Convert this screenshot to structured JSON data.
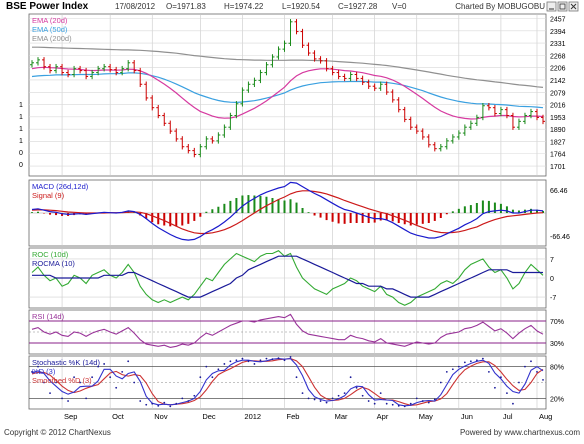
{
  "header": {
    "title": "BSE Power Index",
    "date": "17/08/2012",
    "open": "O=1971.83",
    "high": "H=1974.22",
    "low": "L=1920.54",
    "close": "C=1927.28",
    "volume": "V=0",
    "charted_by": "Charted By MOBUGOBU"
  },
  "footer": {
    "copyright": "Copyright © 2012 ChartNexus",
    "powered_by": "Powered by www.chartnexus.com"
  },
  "colors": {
    "up": "#1a8a1a",
    "down": "#cc0000",
    "ema20": "#d63aa0",
    "ema50": "#3aa0e0",
    "ema200": "#909090",
    "macd": "#1a1acc",
    "signal": "#cc1a1a",
    "roc": "#33aa33",
    "rocma": "#1a1a99",
    "rsi": "#993399",
    "stoch_k": "#1a1a99",
    "stoch_d": "#3333cc",
    "stoch_smooth": "#cc3333",
    "band": "#882288"
  },
  "chart_data": [
    {
      "type": "candlestick",
      "name": "price",
      "legend": [
        "EMA (20d)",
        "EMA (50d)",
        "EMA (200d)"
      ],
      "y_ticks": [
        "2457",
        "2394",
        "2331",
        "2268",
        "2206",
        "2142",
        "2079",
        "2016",
        "1953",
        "1890",
        "1827",
        "1764",
        "1701"
      ],
      "left_ticks": [
        "1",
        "1",
        "1",
        "1",
        "0",
        "0"
      ],
      "ylim": [
        1650,
        2480
      ],
      "x_labels": [
        "Sep",
        "Oct",
        "Nov",
        "Dec",
        "2012",
        "Feb",
        "Mar",
        "Apr",
        "May",
        "Jun",
        "Jul",
        "Aug"
      ],
      "close": [
        2230,
        2245,
        2210,
        2190,
        2210,
        2180,
        2170,
        2200,
        2190,
        2160,
        2180,
        2200,
        2210,
        2195,
        2180,
        2200,
        2230,
        2190,
        2120,
        2050,
        2000,
        1960,
        1920,
        1880,
        1840,
        1800,
        1780,
        1760,
        1800,
        1840,
        1830,
        1860,
        1900,
        1960,
        2020,
        2090,
        2120,
        2140,
        2180,
        2220,
        2260,
        2300,
        2330,
        2440,
        2390,
        2320,
        2280,
        2250,
        2240,
        2200,
        2180,
        2160,
        2150,
        2170,
        2150,
        2130,
        2110,
        2100,
        2120,
        2080,
        2040,
        1990,
        1940,
        1900,
        1880,
        1850,
        1810,
        1790,
        1800,
        1830,
        1850,
        1870,
        1900,
        1920,
        1950,
        2010,
        2000,
        1970,
        1990,
        1960,
        1900,
        1930,
        1960,
        1980,
        1950,
        1930
      ],
      "ema20": [
        2200,
        2205,
        2207,
        2205,
        2204,
        2201,
        2198,
        2197,
        2196,
        2192,
        2190,
        2191,
        2193,
        2193,
        2192,
        2193,
        2197,
        2196,
        2189,
        2176,
        2160,
        2141,
        2121,
        2099,
        2075,
        2049,
        2024,
        2001,
        1981,
        1969,
        1957,
        1949,
        1946,
        1947,
        1954,
        1967,
        1982,
        1997,
        2015,
        2035,
        2058,
        2081,
        2105,
        2138,
        2163,
        2179,
        2189,
        2195,
        2199,
        2199,
        2197,
        2194,
        2190,
        2188,
        2184,
        2179,
        2172,
        2165,
        2161,
        2153,
        2142,
        2127,
        2109,
        2089,
        2068,
        2047,
        2024,
        2002,
        1983,
        1969,
        1958,
        1950,
        1945,
        1942,
        1943,
        1950,
        1955,
        1957,
        1960,
        1960,
        1955,
        1953,
        1954,
        1957,
        1957,
        1955
      ],
      "ema50": [
        2160,
        2163,
        2165,
        2166,
        2168,
        2168,
        2168,
        2169,
        2170,
        2170,
        2170,
        2171,
        2173,
        2174,
        2174,
        2175,
        2178,
        2178,
        2176,
        2171,
        2164,
        2156,
        2146,
        2134,
        2121,
        2107,
        2092,
        2077,
        2065,
        2055,
        2045,
        2037,
        2031,
        2028,
        2027,
        2029,
        2032,
        2036,
        2042,
        2049,
        2057,
        2066,
        2076,
        2090,
        2102,
        2111,
        2118,
        2123,
        2128,
        2130,
        2132,
        2133,
        2133,
        2134,
        2134,
        2134,
        2133,
        2131,
        2131,
        2129,
        2125,
        2120,
        2113,
        2105,
        2096,
        2087,
        2076,
        2065,
        2055,
        2046,
        2039,
        2032,
        2027,
        2023,
        2020,
        2020,
        2019,
        2017,
        2016,
        2014,
        2010,
        2007,
        2006,
        2005,
        2003,
        2000
      ],
      "ema200": [
        2310,
        2310,
        2309,
        2308,
        2307,
        2306,
        2305,
        2304,
        2303,
        2302,
        2301,
        2300,
        2299,
        2298,
        2297,
        2296,
        2296,
        2295,
        2294,
        2292,
        2290,
        2288,
        2285,
        2282,
        2279,
        2275,
        2271,
        2267,
        2264,
        2260,
        2257,
        2254,
        2251,
        2249,
        2247,
        2246,
        2245,
        2244,
        2244,
        2243,
        2243,
        2243,
        2243,
        2244,
        2244,
        2244,
        2243,
        2242,
        2241,
        2240,
        2238,
        2236,
        2234,
        2232,
        2230,
        2228,
        2225,
        2222,
        2219,
        2216,
        2212,
        2208,
        2203,
        2198,
        2193,
        2188,
        2183,
        2177,
        2172,
        2166,
        2161,
        2156,
        2151,
        2147,
        2143,
        2140,
        2136,
        2132,
        2129,
        2125,
        2121,
        2117,
        2114,
        2111,
        2107,
        2104
      ]
    },
    {
      "type": "line",
      "name": "macd",
      "legend": [
        "MACD (26d,12d)",
        "Signal (9)"
      ],
      "y_ticks": [
        "66.46",
        "-66.46"
      ],
      "ylim": [
        -95,
        95
      ],
      "macd": [
        10,
        12,
        8,
        4,
        2,
        -2,
        -4,
        -3,
        -2,
        -4,
        -2,
        0,
        2,
        1,
        0,
        2,
        6,
        4,
        -4,
        -16,
        -30,
        -42,
        -52,
        -62,
        -70,
        -76,
        -78,
        -76,
        -68,
        -56,
        -48,
        -38,
        -26,
        -12,
        4,
        20,
        32,
        42,
        52,
        60,
        66,
        72,
        76,
        88,
        86,
        76,
        66,
        56,
        48,
        38,
        28,
        18,
        10,
        6,
        0,
        -6,
        -12,
        -16,
        -16,
        -20,
        -28,
        -38,
        -48,
        -58,
        -64,
        -68,
        -72,
        -72,
        -68,
        -60,
        -52,
        -44,
        -34,
        -26,
        -16,
        -2,
        4,
        6,
        8,
        6,
        0,
        0,
        4,
        8,
        8,
        6
      ],
      "signal": [
        8,
        9,
        9,
        8,
        7,
        5,
        3,
        2,
        1,
        0,
        0,
        0,
        0,
        1,
        1,
        1,
        2,
        3,
        2,
        -2,
        -8,
        -15,
        -22,
        -30,
        -38,
        -46,
        -52,
        -57,
        -59,
        -59,
        -57,
        -53,
        -48,
        -41,
        -32,
        -22,
        -11,
        0,
        11,
        21,
        30,
        39,
        46,
        55,
        61,
        64,
        64,
        62,
        59,
        55,
        49,
        43,
        36,
        30,
        24,
        18,
        12,
        7,
        2,
        -2,
        -8,
        -14,
        -21,
        -28,
        -36,
        -42,
        -48,
        -53,
        -56,
        -57,
        -56,
        -54,
        -50,
        -45,
        -40,
        -32,
        -25,
        -19,
        -14,
        -10,
        -8,
        -6,
        -4,
        -2,
        0,
        1
      ]
    },
    {
      "type": "line",
      "name": "roc",
      "legend": [
        "ROC (10d)",
        "ROCMA (10)"
      ],
      "y_ticks": [
        "7",
        "0",
        "-7"
      ],
      "ylim": [
        -11,
        11
      ],
      "roc": [
        2,
        4,
        1,
        -1,
        0,
        -3,
        -2,
        1,
        0,
        -2,
        1,
        2,
        3,
        1,
        0,
        2,
        5,
        2,
        -3,
        -6,
        -8,
        -9,
        -8,
        -9,
        -8,
        -7,
        -8,
        -6,
        -3,
        0,
        -1,
        2,
        5,
        7,
        9,
        8,
        7,
        6,
        8,
        9,
        9,
        10,
        8,
        9,
        4,
        0,
        -2,
        -4,
        -5,
        -6,
        -4,
        -3,
        -2,
        0,
        -1,
        -3,
        -4,
        -5,
        -3,
        -6,
        -7,
        -9,
        -10,
        -9,
        -7,
        -6,
        -5,
        -4,
        -2,
        -1,
        -2,
        0,
        3,
        5,
        6,
        7,
        4,
        2,
        3,
        0,
        -4,
        -2,
        2,
        5,
        3,
        1
      ],
      "rocma": [
        1,
        1,
        1,
        1,
        0,
        0,
        0,
        0,
        0,
        0,
        0,
        0,
        1,
        1,
        1,
        1,
        2,
        2,
        1,
        0,
        -1,
        -2,
        -3,
        -4,
        -5,
        -6,
        -7,
        -7,
        -7,
        -6,
        -5,
        -4,
        -3,
        -2,
        0,
        1,
        3,
        4,
        5,
        6,
        7,
        8,
        8,
        8,
        8,
        7,
        6,
        5,
        4,
        3,
        2,
        1,
        0,
        -1,
        -2,
        -2,
        -3,
        -3,
        -3,
        -4,
        -4,
        -5,
        -6,
        -7,
        -7,
        -7,
        -7,
        -6,
        -5,
        -4,
        -3,
        -2,
        -1,
        0,
        1,
        2,
        3,
        3,
        3,
        3,
        2,
        2,
        2,
        2,
        2,
        2
      ]
    },
    {
      "type": "line",
      "name": "rsi",
      "legend": [
        "RSI (14d)"
      ],
      "y_ticks": [
        "70%",
        "30%"
      ],
      "ylim": [
        10,
        90
      ],
      "rsi": [
        55,
        58,
        50,
        46,
        50,
        44,
        42,
        50,
        48,
        42,
        48,
        52,
        55,
        50,
        46,
        52,
        58,
        48,
        36,
        28,
        26,
        24,
        26,
        22,
        24,
        28,
        26,
        30,
        40,
        48,
        44,
        50,
        56,
        62,
        66,
        70,
        70,
        68,
        72,
        74,
        76,
        78,
        76,
        82,
        64,
        52,
        46,
        44,
        42,
        40,
        38,
        36,
        36,
        44,
        40,
        38,
        34,
        32,
        38,
        30,
        28,
        26,
        24,
        28,
        32,
        30,
        28,
        30,
        40,
        46,
        48,
        50,
        56,
        58,
        62,
        68,
        60,
        52,
        56,
        48,
        38,
        48,
        56,
        62,
        52,
        46
      ]
    },
    {
      "type": "line",
      "name": "stochastic",
      "legend": [
        "Stochastic %K (14d)",
        "%D (3)",
        "Smoothed %D (3)"
      ],
      "y_ticks": [
        "80%",
        "20%"
      ],
      "ylim": [
        0,
        100
      ],
      "k": [
        70,
        80,
        50,
        30,
        50,
        20,
        15,
        60,
        50,
        20,
        60,
        80,
        85,
        60,
        40,
        70,
        90,
        50,
        15,
        8,
        10,
        6,
        12,
        5,
        10,
        20,
        15,
        25,
        60,
        80,
        60,
        75,
        85,
        90,
        92,
        95,
        90,
        85,
        92,
        95,
        94,
        96,
        92,
        98,
        60,
        30,
        20,
        18,
        15,
        12,
        20,
        25,
        30,
        60,
        40,
        25,
        15,
        10,
        30,
        10,
        8,
        6,
        5,
        10,
        20,
        15,
        12,
        18,
        50,
        70,
        75,
        80,
        88,
        90,
        92,
        95,
        70,
        40,
        60,
        30,
        10,
        50,
        80,
        90,
        70,
        55
      ],
      "d": [
        68,
        72,
        67,
        53,
        43,
        33,
        28,
        32,
        42,
        43,
        43,
        53,
        75,
        75,
        62,
        57,
        67,
        70,
        52,
        24,
        11,
        8,
        9,
        8,
        9,
        12,
        15,
        20,
        33,
        55,
        67,
        72,
        73,
        83,
        89,
        92,
        92,
        90,
        89,
        91,
        94,
        95,
        94,
        95,
        83,
        63,
        37,
        23,
        18,
        15,
        16,
        19,
        25,
        38,
        43,
        42,
        27,
        17,
        18,
        17,
        16,
        8,
        6,
        7,
        12,
        15,
        16,
        15,
        27,
        46,
        65,
        75,
        81,
        86,
        90,
        92,
        86,
        68,
        57,
        43,
        33,
        30,
        47,
        73,
        80,
        72
      ],
      "smoothed": [
        66,
        69,
        69,
        64,
        54,
        43,
        35,
        31,
        34,
        39,
        43,
        46,
        57,
        68,
        71,
        65,
        62,
        65,
        63,
        49,
        29,
        14,
        9,
        8,
        9,
        10,
        12,
        16,
        23,
        36,
        52,
        65,
        71,
        76,
        82,
        88,
        91,
        91,
        90,
        90,
        91,
        93,
        94,
        95,
        91,
        80,
        61,
        41,
        26,
        19,
        16,
        17,
        20,
        27,
        35,
        41,
        37,
        29,
        21,
        17,
        17,
        14,
        10,
        7,
        8,
        11,
        14,
        15,
        19,
        29,
        46,
        62,
        74,
        81,
        86,
        89,
        89,
        82,
        70,
        56,
        44,
        35,
        37,
        50,
        67,
        75
      ]
    }
  ]
}
